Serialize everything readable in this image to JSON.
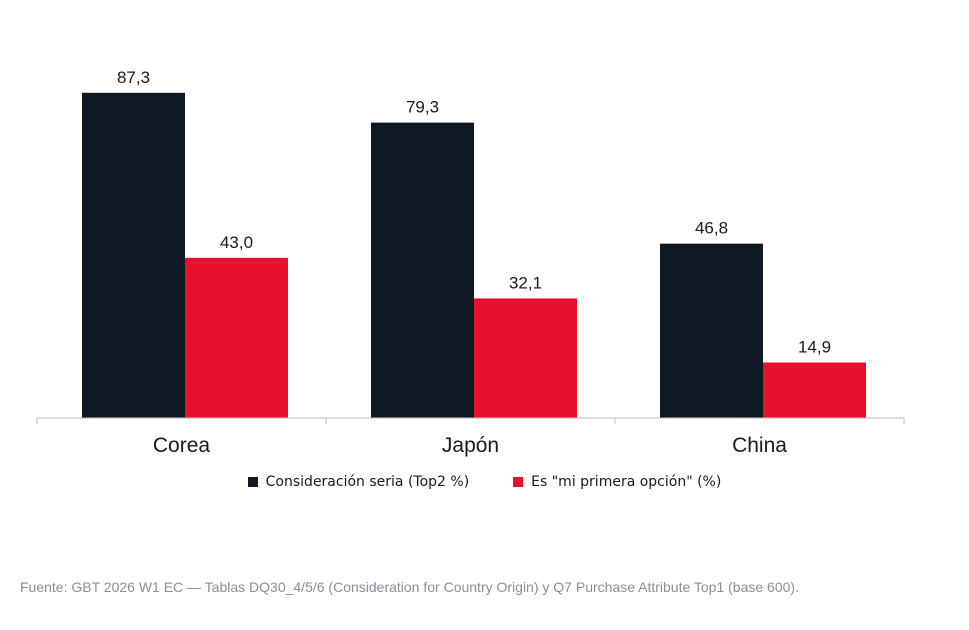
{
  "chart_data": {
    "type": "bar",
    "title": "",
    "xlabel": "",
    "ylabel": "",
    "categories": [
      "Corea",
      "Japón",
      "China"
    ],
    "series": [
      {
        "name": "Consideración seria (Top2 %)",
        "color": "#0f1923",
        "values": [
          87.3,
          79.3,
          46.8
        ],
        "labels": [
          "87,3",
          "79,3",
          "46,8"
        ]
      },
      {
        "name": "Es \"mi primera opción\" (%)",
        "color": "#e8102a",
        "values": [
          43.0,
          32.1,
          14.9
        ],
        "labels": [
          "43,0",
          "32,1",
          "14,9"
        ]
      }
    ],
    "ylim": [
      0,
      100
    ],
    "grid": false,
    "legend_position": "bottom"
  },
  "source_note": "Fuente: GBT 2026 W1 EC — Tablas DQ30_4/5/6 (Consideration for Country Origin) y Q7 Purchase Attribute Top1 (base 600)."
}
